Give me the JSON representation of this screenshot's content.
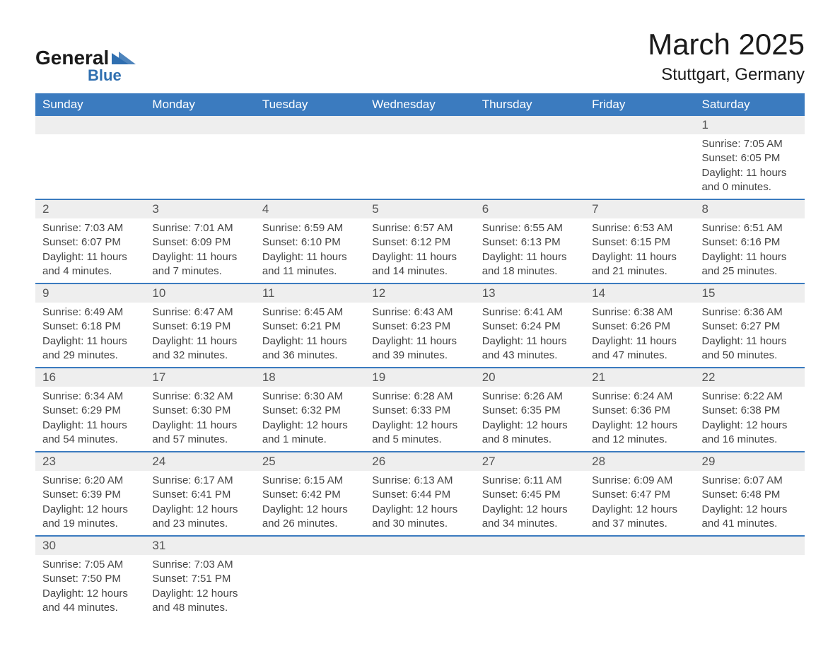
{
  "logo": {
    "main": "General",
    "sub": "Blue"
  },
  "title": {
    "month": "March 2025",
    "location": "Stuttgart, Germany"
  },
  "header": {
    "days": [
      "Sunday",
      "Monday",
      "Tuesday",
      "Wednesday",
      "Thursday",
      "Friday",
      "Saturday"
    ],
    "bg_color": "#3b7bbf",
    "text_color": "#ffffff"
  },
  "colors": {
    "daynum_bg": "#eeeeee",
    "sep_color": "#3b7bbf",
    "body_text": "#444444",
    "logo_accent": "#2f6fb0"
  },
  "labels": {
    "sunrise": "Sunrise:",
    "sunset": "Sunset:",
    "daylight": "Daylight:"
  },
  "weeks": [
    [
      null,
      null,
      null,
      null,
      null,
      null,
      {
        "n": "1",
        "sunrise": "7:05 AM",
        "sunset": "6:05 PM",
        "daylight": "11 hours and 0 minutes."
      }
    ],
    [
      {
        "n": "2",
        "sunrise": "7:03 AM",
        "sunset": "6:07 PM",
        "daylight": "11 hours and 4 minutes."
      },
      {
        "n": "3",
        "sunrise": "7:01 AM",
        "sunset": "6:09 PM",
        "daylight": "11 hours and 7 minutes."
      },
      {
        "n": "4",
        "sunrise": "6:59 AM",
        "sunset": "6:10 PM",
        "daylight": "11 hours and 11 minutes."
      },
      {
        "n": "5",
        "sunrise": "6:57 AM",
        "sunset": "6:12 PM",
        "daylight": "11 hours and 14 minutes."
      },
      {
        "n": "6",
        "sunrise": "6:55 AM",
        "sunset": "6:13 PM",
        "daylight": "11 hours and 18 minutes."
      },
      {
        "n": "7",
        "sunrise": "6:53 AM",
        "sunset": "6:15 PM",
        "daylight": "11 hours and 21 minutes."
      },
      {
        "n": "8",
        "sunrise": "6:51 AM",
        "sunset": "6:16 PM",
        "daylight": "11 hours and 25 minutes."
      }
    ],
    [
      {
        "n": "9",
        "sunrise": "6:49 AM",
        "sunset": "6:18 PM",
        "daylight": "11 hours and 29 minutes."
      },
      {
        "n": "10",
        "sunrise": "6:47 AM",
        "sunset": "6:19 PM",
        "daylight": "11 hours and 32 minutes."
      },
      {
        "n": "11",
        "sunrise": "6:45 AM",
        "sunset": "6:21 PM",
        "daylight": "11 hours and 36 minutes."
      },
      {
        "n": "12",
        "sunrise": "6:43 AM",
        "sunset": "6:23 PM",
        "daylight": "11 hours and 39 minutes."
      },
      {
        "n": "13",
        "sunrise": "6:41 AM",
        "sunset": "6:24 PM",
        "daylight": "11 hours and 43 minutes."
      },
      {
        "n": "14",
        "sunrise": "6:38 AM",
        "sunset": "6:26 PM",
        "daylight": "11 hours and 47 minutes."
      },
      {
        "n": "15",
        "sunrise": "6:36 AM",
        "sunset": "6:27 PM",
        "daylight": "11 hours and 50 minutes."
      }
    ],
    [
      {
        "n": "16",
        "sunrise": "6:34 AM",
        "sunset": "6:29 PM",
        "daylight": "11 hours and 54 minutes."
      },
      {
        "n": "17",
        "sunrise": "6:32 AM",
        "sunset": "6:30 PM",
        "daylight": "11 hours and 57 minutes."
      },
      {
        "n": "18",
        "sunrise": "6:30 AM",
        "sunset": "6:32 PM",
        "daylight": "12 hours and 1 minute."
      },
      {
        "n": "19",
        "sunrise": "6:28 AM",
        "sunset": "6:33 PM",
        "daylight": "12 hours and 5 minutes."
      },
      {
        "n": "20",
        "sunrise": "6:26 AM",
        "sunset": "6:35 PM",
        "daylight": "12 hours and 8 minutes."
      },
      {
        "n": "21",
        "sunrise": "6:24 AM",
        "sunset": "6:36 PM",
        "daylight": "12 hours and 12 minutes."
      },
      {
        "n": "22",
        "sunrise": "6:22 AM",
        "sunset": "6:38 PM",
        "daylight": "12 hours and 16 minutes."
      }
    ],
    [
      {
        "n": "23",
        "sunrise": "6:20 AM",
        "sunset": "6:39 PM",
        "daylight": "12 hours and 19 minutes."
      },
      {
        "n": "24",
        "sunrise": "6:17 AM",
        "sunset": "6:41 PM",
        "daylight": "12 hours and 23 minutes."
      },
      {
        "n": "25",
        "sunrise": "6:15 AM",
        "sunset": "6:42 PM",
        "daylight": "12 hours and 26 minutes."
      },
      {
        "n": "26",
        "sunrise": "6:13 AM",
        "sunset": "6:44 PM",
        "daylight": "12 hours and 30 minutes."
      },
      {
        "n": "27",
        "sunrise": "6:11 AM",
        "sunset": "6:45 PM",
        "daylight": "12 hours and 34 minutes."
      },
      {
        "n": "28",
        "sunrise": "6:09 AM",
        "sunset": "6:47 PM",
        "daylight": "12 hours and 37 minutes."
      },
      {
        "n": "29",
        "sunrise": "6:07 AM",
        "sunset": "6:48 PM",
        "daylight": "12 hours and 41 minutes."
      }
    ],
    [
      {
        "n": "30",
        "sunrise": "7:05 AM",
        "sunset": "7:50 PM",
        "daylight": "12 hours and 44 minutes."
      },
      {
        "n": "31",
        "sunrise": "7:03 AM",
        "sunset": "7:51 PM",
        "daylight": "12 hours and 48 minutes."
      },
      null,
      null,
      null,
      null,
      null
    ]
  ]
}
